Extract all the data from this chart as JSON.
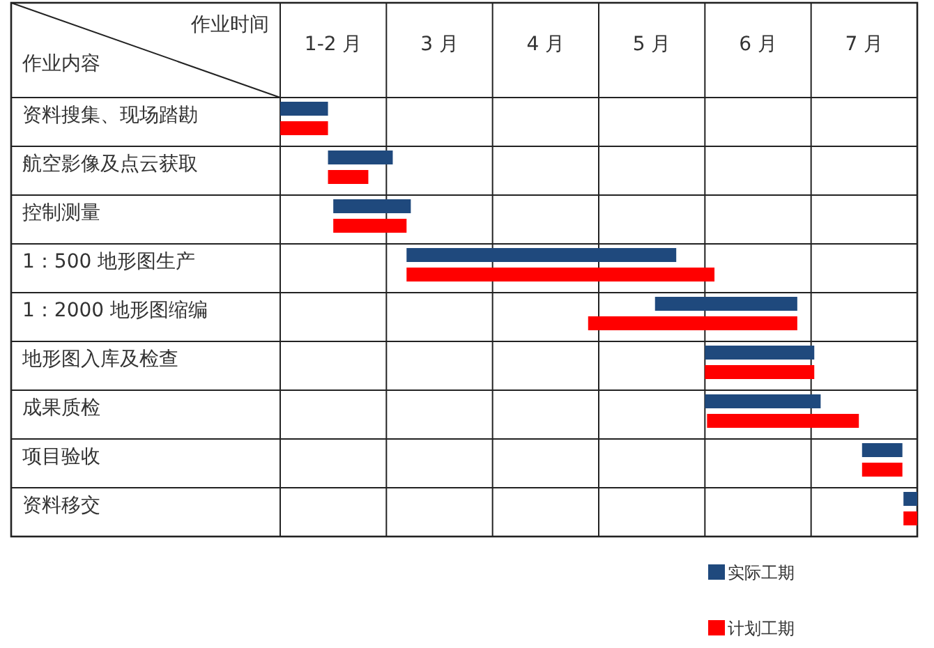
{
  "chart_data": {
    "type": "bar",
    "orientation": "horizontal",
    "xlabel": "作业时间",
    "ylabel": "作业内容",
    "categories": [
      "资料搜集、现场踏勘",
      "航空影像及点云获取",
      "控制测量",
      "1：500 地形图生产",
      "1：2000 地形图缩编",
      "地形图入库及检查",
      "成果质检",
      "项目验收",
      "资料移交"
    ],
    "series": [
      {
        "name": "实际工期",
        "color": "#1f497d",
        "base": [
          1.5,
          1.95,
          2.0,
          2.69,
          5.03,
          5.5,
          5.5,
          6.98,
          7.37
        ],
        "values": [
          0.45,
          0.61,
          0.73,
          2.54,
          1.34,
          1.03,
          1.09,
          0.38,
          0.13
        ]
      },
      {
        "name": "计划工期",
        "color": "#ff0000",
        "base": [
          1.5,
          1.95,
          2.0,
          2.69,
          4.4,
          5.5,
          5.52,
          6.98,
          7.37
        ],
        "values": [
          0.45,
          0.38,
          0.69,
          2.9,
          1.97,
          1.03,
          1.43,
          0.38,
          0.13
        ]
      }
    ],
    "xlim": [
      1.5,
      7.5
    ],
    "xticks": [
      {
        "value": 1.5,
        "label": null
      },
      {
        "value": 2,
        "label": "1-2 月"
      },
      {
        "value": 2.5,
        "label": null
      },
      {
        "value": 3,
        "label": "3 月"
      },
      {
        "value": 3.5,
        "label": null
      },
      {
        "value": 4,
        "label": "4 月"
      },
      {
        "value": 4.5,
        "label": null
      },
      {
        "value": 5,
        "label": "5 月"
      },
      {
        "value": 5.5,
        "label": null
      },
      {
        "value": 6,
        "label": "6 月"
      },
      {
        "value": 6.5,
        "label": null
      },
      {
        "value": 7,
        "label": "7 月"
      },
      {
        "value": 7.5,
        "label": null
      }
    ],
    "grid": true,
    "legend": "bottom right"
  }
}
